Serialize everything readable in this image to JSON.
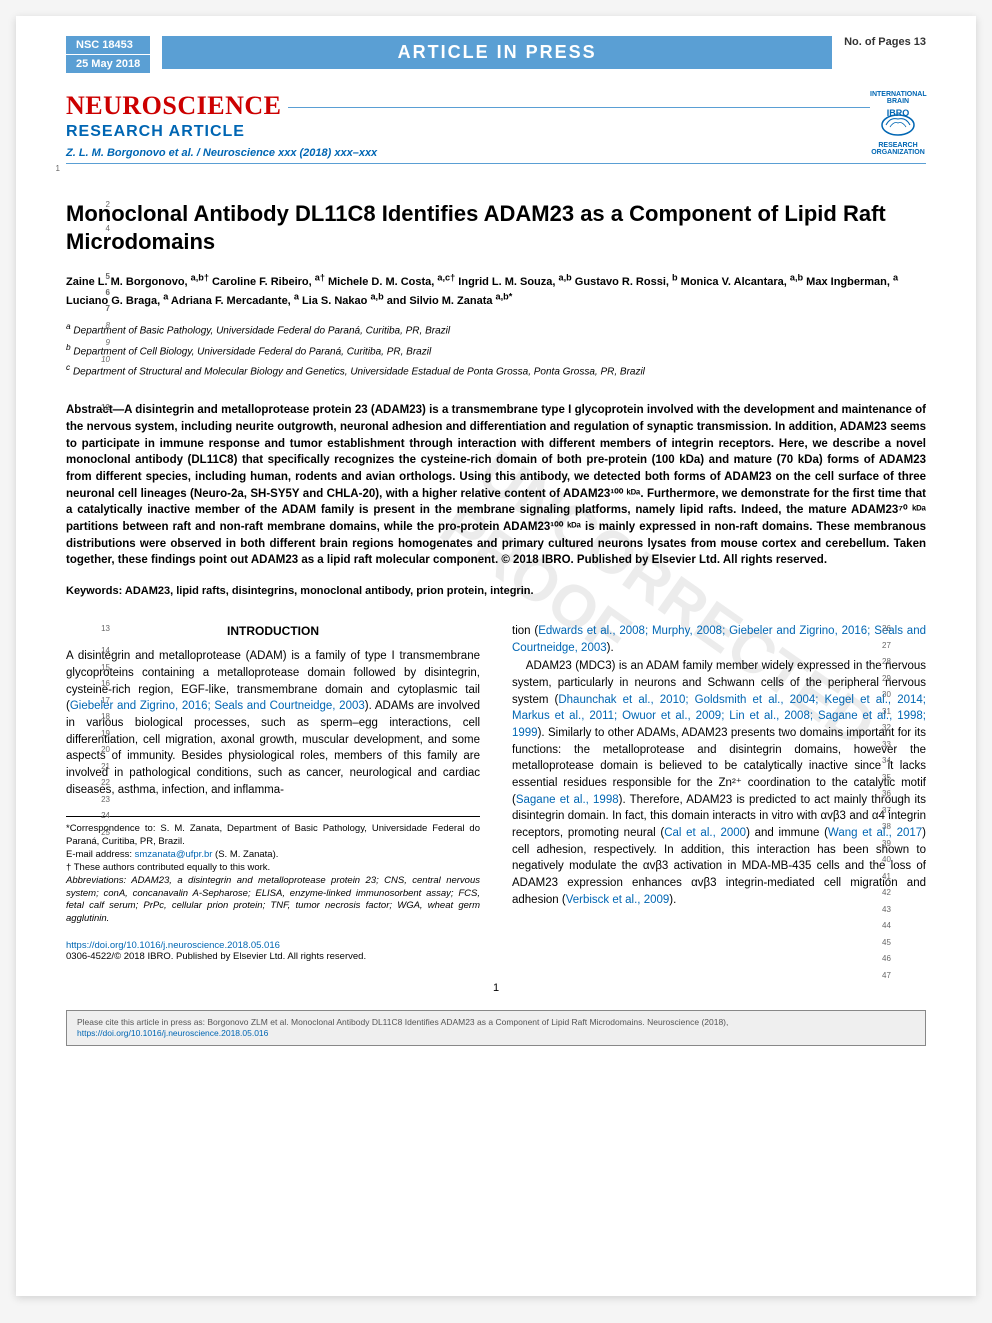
{
  "header": {
    "nsc": "NSC 18453",
    "date": "25 May 2018",
    "press": "ARTICLE IN PRESS",
    "pages": "No. of Pages 13"
  },
  "masthead": {
    "journal": "NEUROSCIENCE",
    "article_type": "RESEARCH ARTICLE",
    "running_head": "Z. L. M. Borgonovo et al. / Neuroscience xxx (2018) xxx–xxx",
    "logo_top": "INTERNATIONAL BRAIN",
    "logo_mid": "IBRO",
    "logo_bottom": "RESEARCH ORGANIZATION"
  },
  "title": "Monoclonal Antibody DL11C8 Identifies ADAM23 as a Component of Lipid Raft Microdomains",
  "authors_html": "Zaine L. M. Borgonovo, <sup>a,b†</sup> Caroline F. Ribeiro, <sup>a†</sup> Michele D. M. Costa, <sup>a,c†</sup> Ingrid L. M. Souza, <sup>a,b</sup> Gustavo R. Rossi, <sup>b</sup> Monica V. Alcantara, <sup>a,b</sup> Max Ingberman, <sup>a</sup> Luciano G. Braga, <sup>a</sup> Adriana F. Mercadante, <sup>a</sup> Lia S. Nakao <sup>a,b</sup> and Silvio M. Zanata <sup>a,b*</sup>",
  "affiliations": {
    "a": "Department of Basic Pathology, Universidade Federal do Paraná, Curitiba, PR, Brazil",
    "b": "Department of Cell Biology, Universidade Federal do Paraná, Curitiba, PR, Brazil",
    "c": "Department of Structural and Molecular Biology and Genetics, Universidade Estadual de Ponta Grossa, Ponta Grossa, PR, Brazil"
  },
  "abstract": "Abstract—A disintegrin and metalloprotease protein 23 (ADAM23) is a transmembrane type I glycoprotein involved with the development and maintenance of the nervous system, including neurite outgrowth, neuronal adhesion and differentiation and regulation of synaptic transmission. In addition, ADAM23 seems to participate in immune response and tumor establishment through interaction with different members of integrin receptors. Here, we describe a novel monoclonal antibody (DL11C8) that specifically recognizes the cysteine-rich domain of both pre-protein (100 kDa) and mature (70 kDa) forms of ADAM23 from different species, including human, rodents and avian orthologs. Using this antibody, we detected both forms of ADAM23 on the cell surface of three neuronal cell lineages (Neuro-2a, SH-SY5Y and CHLA-20), with a higher relative content of ADAM23¹⁰⁰ ᵏᴰᵃ. Furthermore, we demonstrate for the first time that a catalytically inactive member of the ADAM family is present in the membrane signaling platforms, namely lipid rafts. Indeed, the mature ADAM23⁷⁰ ᵏᴰᵃ partitions between raft and non-raft membrane domains, while the pro-protein ADAM23¹⁰⁰ ᵏᴰᵃ is mainly expressed in non-raft domains. These membranous distributions were observed in both different brain regions homogenates and primary cultured neurons lysates from mouse cortex and cerebellum. Taken together, these findings point out ADAM23 as a lipid raft molecular component. © 2018 IBRO. Published by Elsevier Ltd. All rights reserved.",
  "keywords": "Keywords: ADAM23, lipid rafts, disintegrins, monoclonal antibody, prion protein, integrin.",
  "intro_head": "INTRODUCTION",
  "intro_left": "A disintegrin and metalloprotease (ADAM) is a family of type I transmembrane glycoproteins containing a metalloprotease domain followed by disintegrin, cysteine-rich region, EGF-like, transmembrane domain and cytoplasmic tail (Giebeler and Zigrino, 2016; Seals and Courtneidge, 2003). ADAMs are involved in various biological processes, such as sperm–egg interactions, cell differentiation, cell migration, axonal growth, muscular development, and some aspects of immunity. Besides physiological roles, members of this family are involved in pathological conditions, such as cancer, neurological and cardiac diseases, asthma, infection, and inflamma-",
  "intro_right_part1": "tion (Edwards et al., 2008; Murphy, 2008; Giebeler and Zigrino, 2016; Seals and Courtneidge, 2003).",
  "intro_right_part2": "ADAM23 (MDC3) is an ADAM family member widely expressed in the nervous system, particularly in neurons and Schwann cells of the peripheral nervous system (Dhaunchak et al., 2010; Goldsmith et al., 2004; Kegel et al., 2014; Markus et al., 2011; Owuor et al., 2009; Lin et al., 2008; Sagane et al., 1998; 1999). Similarly to other ADAMs, ADAM23 presents two domains important for its functions: the metalloprotease and disintegrin domains, however the metalloprotease domain is believed to be catalytically inactive since it lacks essential residues responsible for the Zn²⁺ coordination to the catalytic motif (Sagane et al., 1998). Therefore, ADAM23 is predicted to act mainly through its disintegrin domain. In fact, this domain interacts in vitro with αvβ3 and α4 integrin receptors, promoting neural (Cal et al., 2000) and immune (Wang et al., 2017) cell adhesion, respectively. In addition, this interaction has been shown to negatively modulate the αvβ3 activation in MDA-MB-435 cells and the loss of ADAM23 expression enhances αvβ3 integrin-mediated cell migration and adhesion (Verbisck et al., 2009).",
  "footnote": {
    "correspondence": "*Correspondence to: S. M. Zanata, Department of Basic Pathology, Universidade Federal do Paraná, Curitiba, PR, Brazil.",
    "email_label": "E-mail address:",
    "email": "smzanata@ufpr.br",
    "email_name": "(S. M. Zanata).",
    "equal": "† These authors contributed equally to this work.",
    "abbrev": "Abbreviations: ADAM23, a disintegrin and metalloprotease protein 23; CNS, central nervous system; conA, concanavalin A-Sepharose; ELISA, enzyme-linked immunosorbent assay; FCS, fetal calf serum; PrPc, cellular prion protein; TNF, tumor necrosis factor; WGA, wheat germ agglutinin."
  },
  "doi": "https://doi.org/10.1016/j.neuroscience.2018.05.016",
  "copyright": "0306-4522/© 2018 IBRO. Published by Elsevier Ltd. All rights reserved.",
  "page_number": "1",
  "citation_box": "Please cite this article in press as: Borgonovo ZLM et al. Monoclonal Antibody DL11C8 Identifies ADAM23 as a Component of Lipid Raft Microdomains. Neuroscience (2018), ",
  "citation_link": "https://doi.org/10.1016/j.neuroscience.2018.05.016",
  "line_numbers_left": [
    "1",
    "2",
    "4",
    "5",
    "6",
    "7",
    "8",
    "9",
    "10",
    "12",
    "13",
    "14",
    "15",
    "16",
    "17",
    "18",
    "19",
    "20",
    "21",
    "22",
    "23",
    "24",
    "25"
  ],
  "line_numbers_right": [
    "26",
    "27",
    "28",
    "29",
    "30",
    "31",
    "32",
    "33",
    "34",
    "35",
    "36",
    "37",
    "38",
    "39",
    "40",
    "41",
    "42",
    "43",
    "44",
    "45",
    "46",
    "47"
  ],
  "colors": {
    "header_blue": "#5a9fd4",
    "link_blue": "#0066b3",
    "journal_red": "#c00000",
    "text": "#000000",
    "bg": "#ffffff",
    "citation_bg": "#efefef"
  }
}
